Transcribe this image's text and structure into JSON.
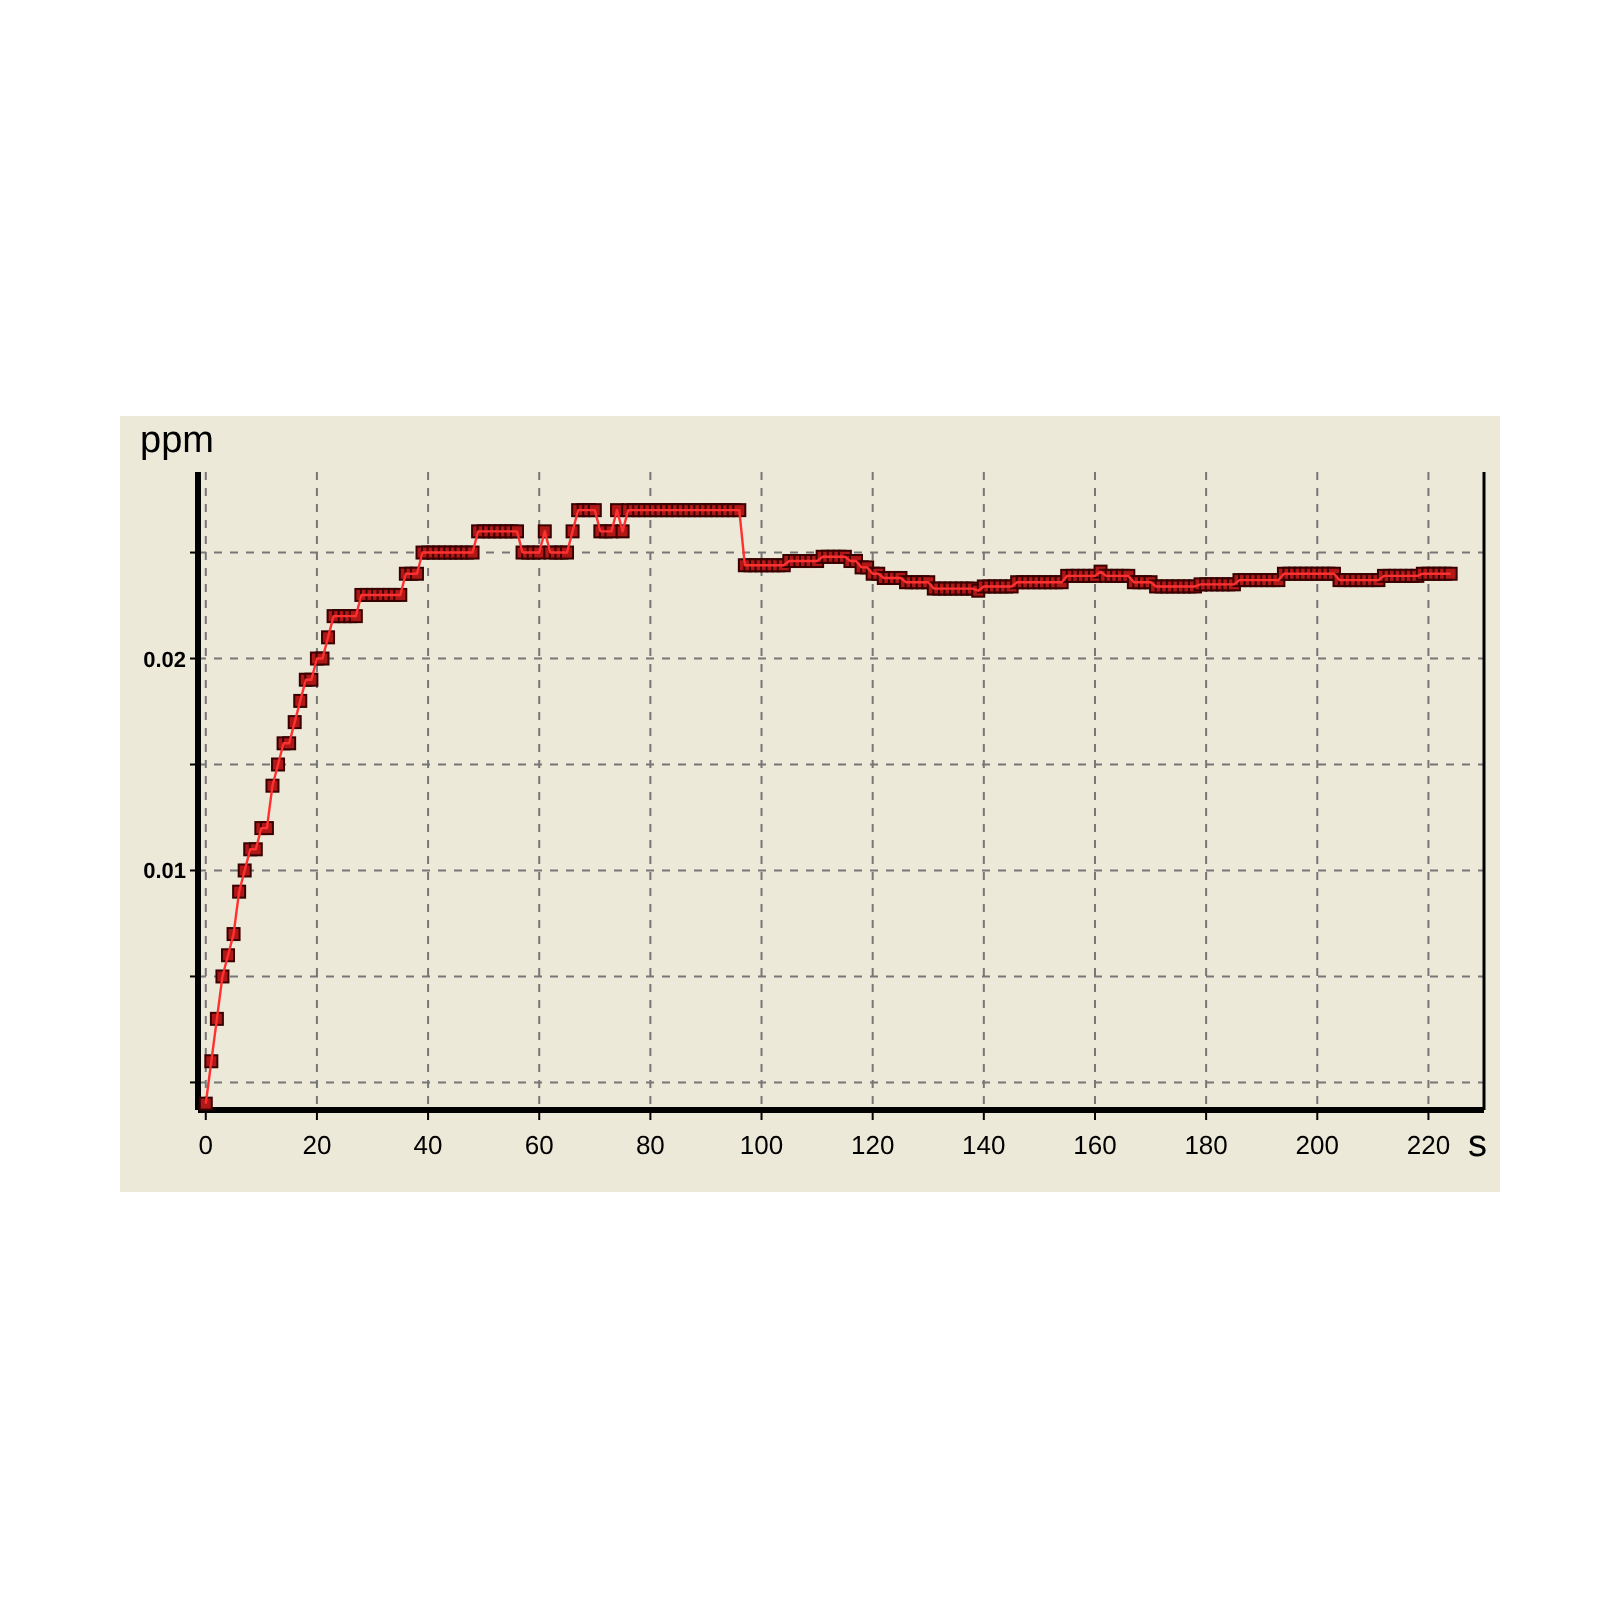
{
  "chart_data": {
    "type": "line",
    "xlabel": "s",
    "ylabel": "ppm",
    "xlim": [
      -1.4,
      230
    ],
    "ylim": [
      -0.0013,
      0.0288
    ],
    "xticks": [
      0,
      20,
      40,
      60,
      80,
      100,
      120,
      140,
      160,
      180,
      200,
      220
    ],
    "yticks": [
      {
        "value": 0,
        "label": null
      },
      {
        "value": 0.005,
        "label": null
      },
      0.01,
      {
        "value": 0.015,
        "label": null
      },
      0.02,
      {
        "value": 0.025,
        "label": null
      }
    ],
    "grid": true,
    "marker": "square",
    "line_style": "solid",
    "x": [
      0,
      1,
      2,
      3,
      4,
      5,
      6,
      7,
      8,
      9,
      10,
      11,
      12,
      13,
      14,
      15,
      16,
      17,
      18,
      19,
      20,
      21,
      22,
      23,
      24,
      25,
      26,
      27,
      28,
      29,
      30,
      31,
      32,
      33,
      34,
      35,
      36,
      37,
      38,
      39,
      40,
      41,
      42,
      43,
      44,
      45,
      46,
      47,
      48,
      49,
      50,
      51,
      52,
      53,
      54,
      55,
      56,
      57,
      58,
      59,
      60,
      61,
      62,
      63,
      64,
      65,
      66,
      67,
      68,
      69,
      70,
      71,
      72,
      73,
      74,
      75,
      76,
      77,
      78,
      79,
      80,
      81,
      82,
      83,
      84,
      85,
      86,
      87,
      88,
      89,
      90,
      91,
      92,
      93,
      94,
      95,
      96,
      97,
      98,
      99,
      100,
      101,
      102,
      103,
      104,
      105,
      106,
      107,
      108,
      109,
      110,
      111,
      112,
      113,
      114,
      115,
      116,
      117,
      118,
      119,
      120,
      121,
      122,
      123,
      124,
      125,
      126,
      127,
      128,
      129,
      130,
      131,
      132,
      133,
      134,
      135,
      136,
      137,
      138,
      139,
      140,
      141,
      142,
      143,
      144,
      145,
      146,
      147,
      148,
      149,
      150,
      151,
      152,
      153,
      154,
      155,
      156,
      157,
      158,
      159,
      160,
      161,
      162,
      163,
      164,
      165,
      166,
      167,
      168,
      169,
      170,
      171,
      172,
      173,
      174,
      175,
      176,
      177,
      178,
      179,
      180,
      181,
      182,
      183,
      184,
      185,
      186,
      187,
      188,
      189,
      190,
      191,
      192,
      193,
      194,
      195,
      196,
      197,
      198,
      199,
      200,
      201,
      202,
      203,
      204,
      205,
      206,
      207,
      208,
      209,
      210,
      211,
      212,
      213,
      214,
      215,
      216,
      217,
      218,
      219,
      220,
      221,
      222,
      223,
      224
    ],
    "series": [
      {
        "color": "#b01818",
        "values": [
          -0.001,
          0.001,
          0.003,
          0.005,
          0.006,
          0.007,
          0.009,
          0.01,
          0.011,
          0.011,
          0.012,
          0.012,
          0.014,
          0.015,
          0.016,
          0.016,
          0.017,
          0.018,
          0.019,
          0.019,
          0.02,
          0.02,
          0.021,
          0.022,
          0.022,
          0.022,
          0.022,
          0.022,
          0.023,
          0.023,
          0.023,
          0.023,
          0.023,
          0.023,
          0.023,
          0.023,
          0.024,
          0.024,
          0.024,
          0.025,
          0.025,
          0.025,
          0.025,
          0.025,
          0.025,
          0.025,
          0.025,
          0.025,
          0.025,
          0.026,
          0.026,
          0.026,
          0.026,
          0.026,
          0.026,
          0.026,
          0.026,
          0.025,
          0.025,
          0.025,
          0.025,
          0.026,
          0.025,
          0.025,
          0.025,
          0.025,
          0.026,
          0.027,
          0.027,
          0.027,
          0.027,
          0.026,
          0.026,
          0.026,
          0.027,
          0.026,
          0.027,
          0.027,
          0.027,
          0.027,
          0.027,
          0.027,
          0.027,
          0.027,
          0.027,
          0.027,
          0.027,
          0.027,
          0.027,
          0.027,
          0.027,
          0.027,
          0.027,
          0.027,
          0.027,
          0.027,
          0.027,
          0.0244,
          0.0244,
          0.0244,
          0.0244,
          0.0244,
          0.0244,
          0.0244,
          0.0244,
          0.0246,
          0.0246,
          0.0246,
          0.0246,
          0.0246,
          0.0246,
          0.0248,
          0.0248,
          0.0248,
          0.0248,
          0.0248,
          0.0246,
          0.0246,
          0.0243,
          0.0243,
          0.024,
          0.024,
          0.0238,
          0.0238,
          0.0238,
          0.0238,
          0.0236,
          0.0236,
          0.0236,
          0.0236,
          0.0236,
          0.0233,
          0.0233,
          0.0233,
          0.0233,
          0.0233,
          0.0233,
          0.0233,
          0.0233,
          0.0232,
          0.0234,
          0.0234,
          0.0234,
          0.0234,
          0.0234,
          0.0234,
          0.0236,
          0.0236,
          0.0236,
          0.0236,
          0.0236,
          0.0236,
          0.0236,
          0.0236,
          0.0236,
          0.0239,
          0.0239,
          0.0239,
          0.0239,
          0.0239,
          0.0239,
          0.0241,
          0.0239,
          0.0239,
          0.0239,
          0.0239,
          0.0239,
          0.0236,
          0.0236,
          0.0236,
          0.0236,
          0.0234,
          0.0234,
          0.0234,
          0.0234,
          0.0234,
          0.0234,
          0.0234,
          0.0234,
          0.0235,
          0.0235,
          0.0235,
          0.0235,
          0.0235,
          0.0235,
          0.0235,
          0.0237,
          0.0237,
          0.0237,
          0.0237,
          0.0237,
          0.0237,
          0.0237,
          0.0237,
          0.024,
          0.024,
          0.024,
          0.024,
          0.024,
          0.024,
          0.024,
          0.024,
          0.024,
          0.024,
          0.0237,
          0.0237,
          0.0237,
          0.0237,
          0.0237,
          0.0237,
          0.0237,
          0.0237,
          0.0239,
          0.0239,
          0.0239,
          0.0239,
          0.0239,
          0.0239,
          0.0239,
          0.024,
          0.024,
          0.024,
          0.024,
          0.024,
          0.024
        ]
      }
    ]
  }
}
